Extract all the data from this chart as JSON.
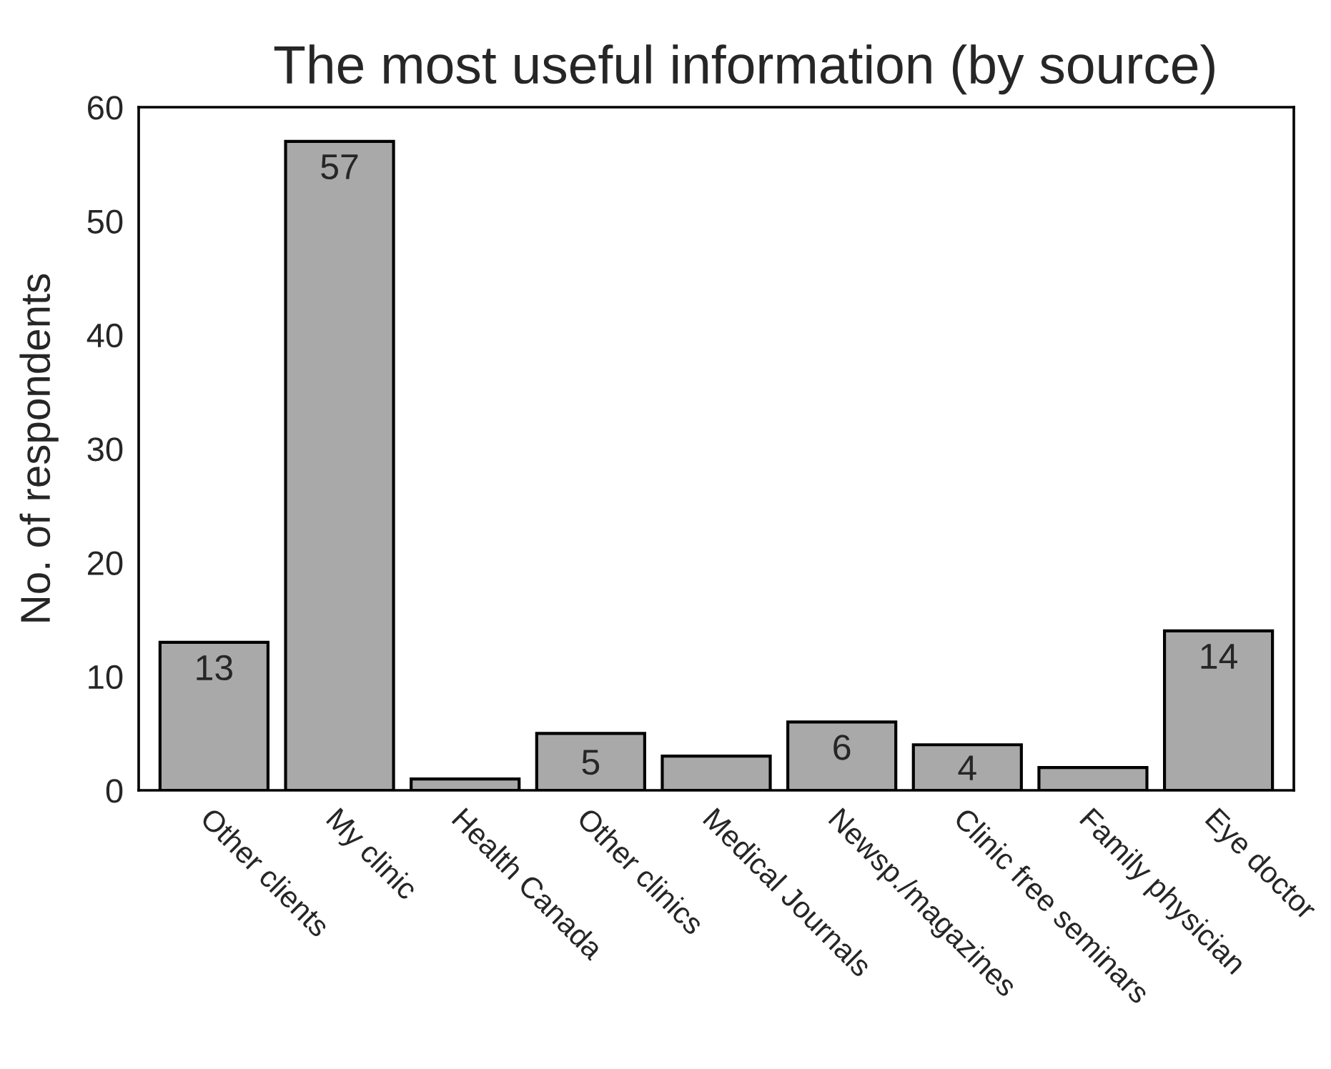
{
  "chart_data": {
    "type": "bar",
    "title": "The most useful information (by source)",
    "ylabel": "No. of respondents",
    "categories": [
      "Other clients",
      "My clinic",
      "Health Canada",
      "Other clinics",
      "Medical Journals",
      "Newsp./magazines",
      "Clinic free seminars",
      "Family physician",
      "Eye doctor"
    ],
    "values": [
      13,
      57,
      1,
      5,
      3,
      6,
      4,
      2,
      14
    ],
    "value_labels": [
      "13",
      "57",
      null,
      "5",
      null,
      "6",
      "4",
      null,
      "14"
    ],
    "color": "#a9a9a9",
    "ylim": [
      0,
      60
    ],
    "yticks": [
      0,
      10,
      20,
      30,
      40,
      50,
      60
    ],
    "grid": false,
    "legend": false
  }
}
